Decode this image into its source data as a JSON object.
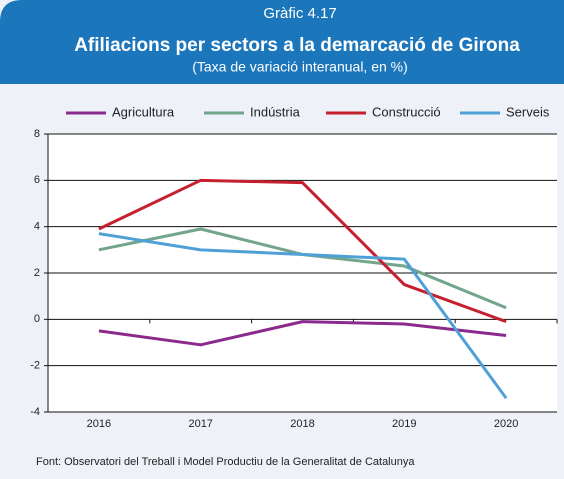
{
  "chart_data": {
    "type": "line",
    "header": "Gràfic 4.17",
    "title": "Afiliacions per sectors a la demarcació de Girona",
    "subtitle": "(Taxa de variació interanual, en %)",
    "categories": [
      "2016",
      "2017",
      "2018",
      "2019",
      "2020"
    ],
    "series": [
      {
        "name": "Agricultura",
        "color": "#8b2a8c",
        "values": [
          -0.5,
          -1.1,
          -0.1,
          -0.2,
          -0.7
        ]
      },
      {
        "name": "Indústria",
        "color": "#72a58c",
        "values": [
          3.0,
          3.9,
          2.8,
          2.3,
          0.5
        ]
      },
      {
        "name": "Construcció",
        "color": "#c6202e",
        "values": [
          3.9,
          6.0,
          5.9,
          1.5,
          -0.1
        ]
      },
      {
        "name": "Serveis",
        "color": "#50a0d8",
        "values": [
          3.7,
          3.0,
          2.8,
          2.6,
          -3.4
        ]
      }
    ],
    "ylim": [
      -4,
      8
    ],
    "yticks": [
      -4,
      -2,
      0,
      2,
      4,
      6,
      8
    ],
    "grid": true,
    "legend": "top",
    "source": "Font: Observatori del Treball i Model Productiu de la Generalitat de Catalunya"
  }
}
